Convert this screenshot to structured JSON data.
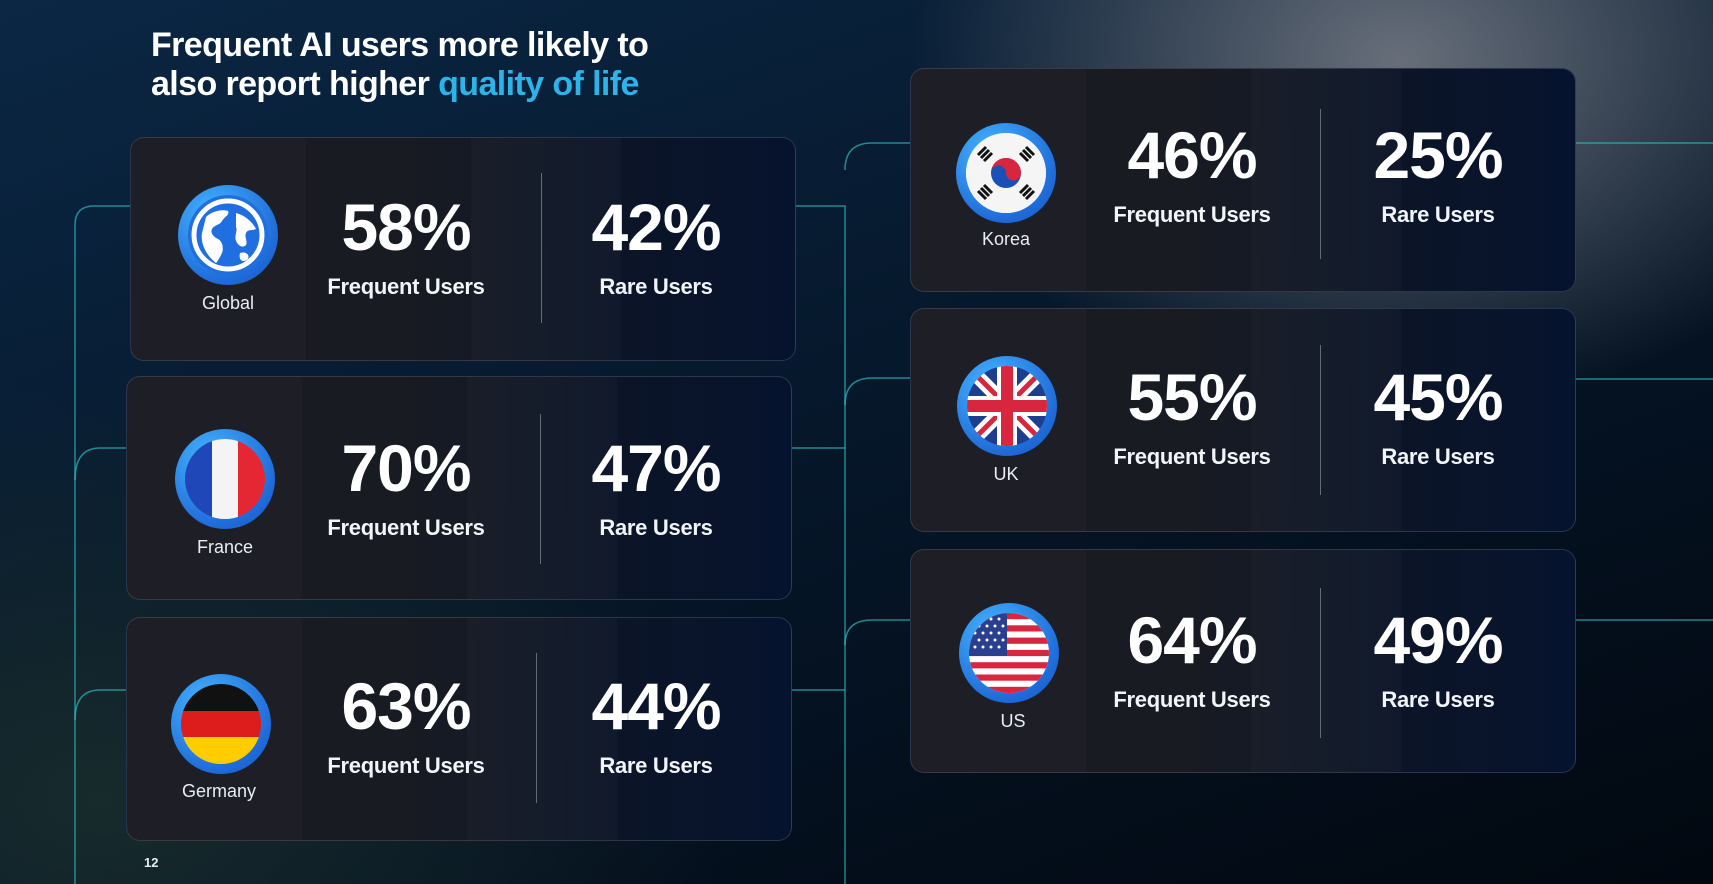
{
  "title": {
    "line1": "Frequent AI users more likely to",
    "line2_prefix": "also report higher ",
    "line2_accent": "quality of life"
  },
  "cards": [
    {
      "country": "Global",
      "frequent_pct": "58%",
      "frequent_label": "Frequent Users",
      "rare_pct": "42%",
      "rare_label": "Rare Users",
      "icon": "globe-icon"
    },
    {
      "country": "France",
      "frequent_pct": "70%",
      "frequent_label": "Frequent Users",
      "rare_pct": "47%",
      "rare_label": "Rare Users",
      "icon": "france-flag-icon"
    },
    {
      "country": "Germany",
      "frequent_pct": "63%",
      "frequent_label": "Frequent Users",
      "rare_pct": "44%",
      "rare_label": "Rare Users",
      "icon": "germany-flag-icon"
    },
    {
      "country": "Korea",
      "frequent_pct": "46%",
      "frequent_label": "Frequent Users",
      "rare_pct": "25%",
      "rare_label": "Rare Users",
      "icon": "korea-flag-icon"
    },
    {
      "country": "UK",
      "frequent_pct": "55%",
      "frequent_label": "Frequent Users",
      "rare_pct": "45%",
      "rare_label": "Rare Users",
      "icon": "uk-flag-icon"
    },
    {
      "country": "US",
      "frequent_pct": "64%",
      "frequent_label": "Frequent Users",
      "rare_pct": "49%",
      "rare_label": "Rare Users",
      "icon": "us-flag-icon"
    }
  ],
  "page_number": "12",
  "colors": {
    "accent": "#2bb3ea",
    "connector": "#2ec4c9"
  }
}
